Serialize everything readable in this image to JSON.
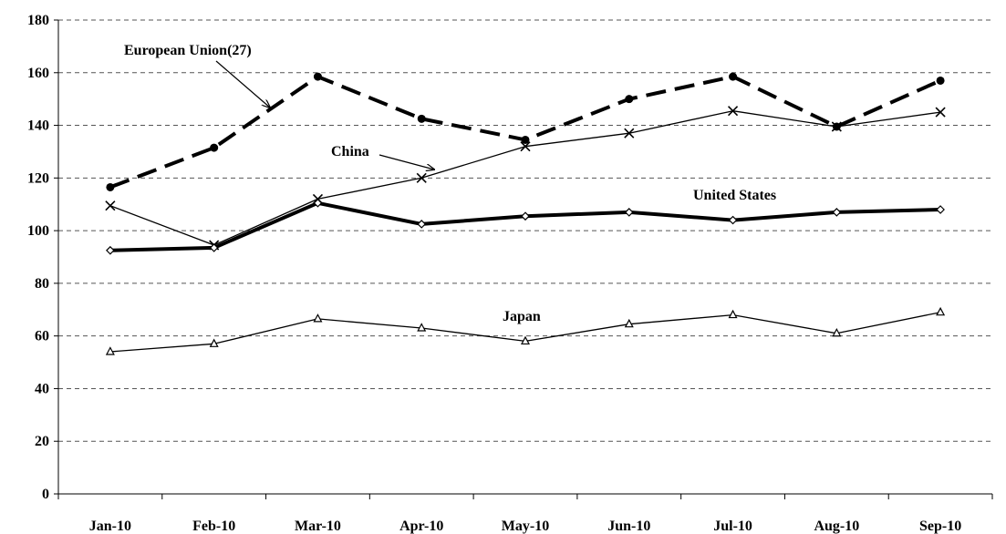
{
  "chart_data": {
    "type": "line",
    "categories": [
      "Jan-10",
      "Feb-10",
      "Mar-10",
      "Apr-10",
      "May-10",
      "Jun-10",
      "Jul-10",
      "Aug-10",
      "Sep-10"
    ],
    "ylim": [
      0,
      180
    ],
    "yticks": [
      0,
      20,
      40,
      60,
      80,
      100,
      120,
      140,
      160,
      180
    ],
    "grid": "horizontal-dashed",
    "series": [
      {
        "name": "European Union(27)",
        "values": [
          116.5,
          131.5,
          158.5,
          142.5,
          134.5,
          150,
          158.5,
          139.5,
          157
        ],
        "style": "dashed-thick",
        "marker": "dot",
        "color": "#000000"
      },
      {
        "name": "China",
        "values": [
          109.5,
          94.5,
          112,
          120,
          132,
          137,
          145.5,
          139.5,
          145
        ],
        "style": "thin",
        "marker": "x",
        "color": "#000000"
      },
      {
        "name": "United States",
        "values": [
          92.5,
          93.5,
          110.5,
          102.5,
          105.5,
          107,
          104,
          107,
          108
        ],
        "style": "thick",
        "marker": "diamond",
        "color": "#000000"
      },
      {
        "name": "Japan",
        "values": [
          54,
          57,
          66.5,
          63,
          58,
          64.5,
          68,
          61,
          69
        ],
        "style": "thin",
        "marker": "triangle",
        "color": "#000000"
      }
    ]
  }
}
